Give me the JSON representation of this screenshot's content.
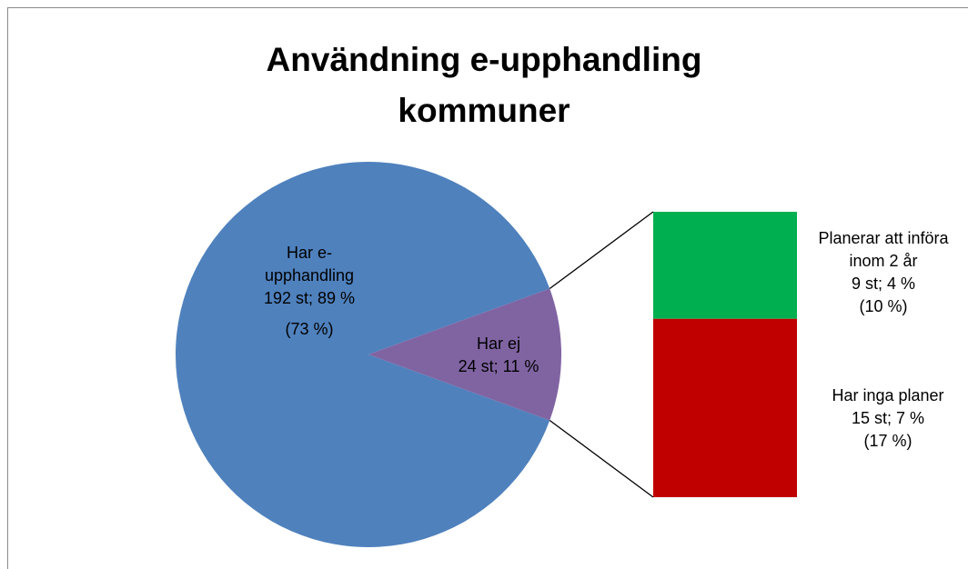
{
  "chart_data": {
    "type": "pie-of-bar",
    "title": "Användning e-upphandling kommuner",
    "pie": {
      "categories": [
        "Har e-upphandling",
        "Har ej"
      ],
      "values": [
        192,
        24
      ],
      "value_labels": [
        "192 st; 89 %",
        "24 st; 11 %"
      ],
      "colors": [
        "#4f81bd",
        "#8064a2"
      ],
      "note": "(73 %)"
    },
    "bar": {
      "categories": [
        "Planerar att införa inom 2 år",
        "Har inga planer"
      ],
      "values": [
        9,
        15
      ],
      "value_labels": [
        "9 st; 4 %",
        "15 st; 7 %"
      ],
      "notes": [
        "(10 %)",
        "(17 %)"
      ],
      "colors": [
        "#00b050",
        "#c00000"
      ]
    }
  }
}
